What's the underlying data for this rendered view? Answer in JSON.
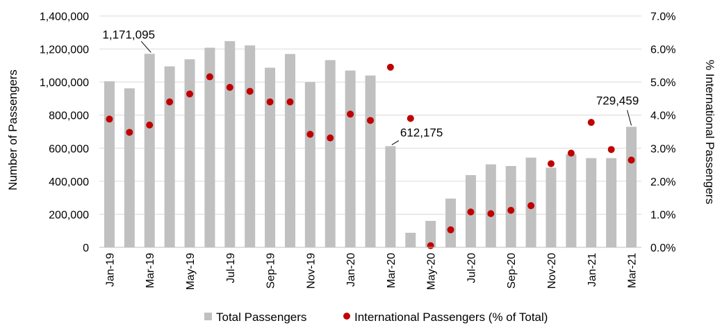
{
  "chart_data": {
    "type": "bar",
    "categories": [
      "Jan-19",
      "Feb-19",
      "Mar-19",
      "Apr-19",
      "May-19",
      "Jun-19",
      "Jul-19",
      "Aug-19",
      "Sep-19",
      "Oct-19",
      "Nov-19",
      "Dec-19",
      "Jan-20",
      "Feb-20",
      "Mar-20",
      "Apr-20",
      "May-20",
      "Jun-20",
      "Jul-20",
      "Aug-20",
      "Sep-20",
      "Oct-20",
      "Nov-20",
      "Dec-20",
      "Jan-21",
      "Feb-21",
      "Mar-21"
    ],
    "x_tick_labels": [
      "Jan-19",
      "Mar-19",
      "May-19",
      "Jul-19",
      "Sep-19",
      "Nov-19",
      "Jan-20",
      "Mar-20",
      "May-20",
      "Jul-20",
      "Sep-20",
      "Nov-20",
      "Jan-21",
      "Mar-21"
    ],
    "series": [
      {
        "name": "Total Passengers",
        "type": "bar",
        "axis": "left",
        "color": "#c0c0c0",
        "values": [
          1005000,
          962000,
          1171095,
          1095000,
          1138000,
          1208000,
          1248000,
          1222000,
          1087000,
          1170000,
          1000000,
          1133000,
          1070000,
          1040000,
          612175,
          88000,
          160000,
          295000,
          437000,
          502000,
          492000,
          543000,
          482000,
          563000,
          540000,
          540000,
          729459
        ]
      },
      {
        "name": "International Passengers (% of Total)",
        "type": "scatter",
        "axis": "right",
        "color": "#c00000",
        "values": [
          3.88,
          3.48,
          3.7,
          4.4,
          4.64,
          5.16,
          4.84,
          4.72,
          4.4,
          4.4,
          3.42,
          3.31,
          4.03,
          3.84,
          5.45,
          3.9,
          0.05,
          0.53,
          1.07,
          1.02,
          1.12,
          1.26,
          2.53,
          2.85,
          3.78,
          2.96,
          2.64
        ]
      }
    ],
    "annotations": [
      {
        "label": "1,171,095",
        "index": 2
      },
      {
        "label": "612,175",
        "index": 14
      },
      {
        "label": "729,459",
        "index": 26
      }
    ],
    "ylabel": "Number of Passengers",
    "ylabel_right": "% International Passengers",
    "ylim": [
      0,
      1400000
    ],
    "ylim_right": [
      0,
      7
    ],
    "yticks": [
      "0",
      "200,000",
      "400,000",
      "600,000",
      "800,000",
      "1,000,000",
      "1,200,000",
      "1,400,000"
    ],
    "yticks_right": [
      "0.0%",
      "1.0%",
      "2.0%",
      "3.0%",
      "4.0%",
      "5.0%",
      "6.0%",
      "7.0%"
    ],
    "grid": "horizontal",
    "legend_position": "bottom"
  }
}
